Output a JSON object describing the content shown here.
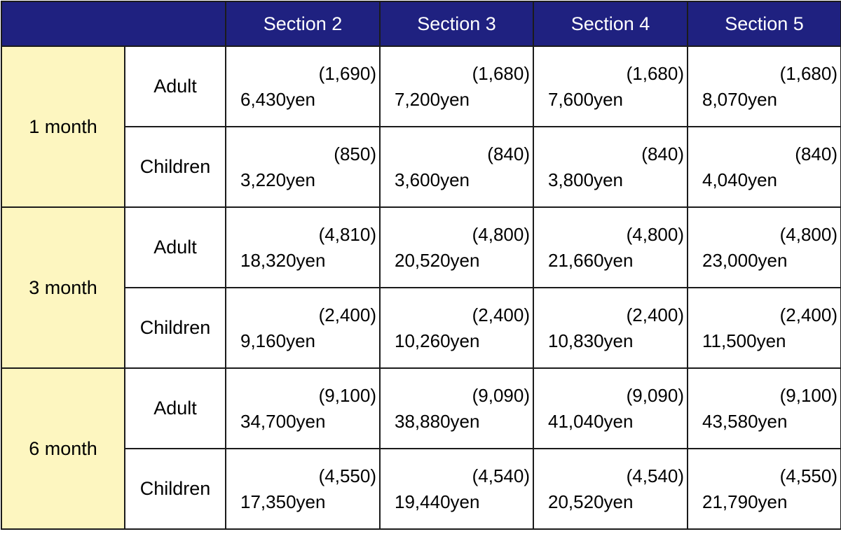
{
  "header": {
    "corner": "",
    "sections": [
      "Section 2",
      "Section 3",
      "Section 4",
      "Section 5"
    ]
  },
  "rows": [
    {
      "period": "1 month",
      "adult": {
        "label": "Adult",
        "cells": [
          {
            "child": "(1,690)",
            "price": "6,430yen"
          },
          {
            "child": "(1,680)",
            "price": "7,200yen"
          },
          {
            "child": "(1,680)",
            "price": "7,600yen"
          },
          {
            "child": "(1,680)",
            "price": "8,070yen"
          }
        ]
      },
      "children": {
        "label": "Children",
        "cells": [
          {
            "child": "(850)",
            "price": "3,220yen"
          },
          {
            "child": "(840)",
            "price": "3,600yen"
          },
          {
            "child": "(840)",
            "price": "3,800yen"
          },
          {
            "child": "(840)",
            "price": "4,040yen"
          }
        ]
      }
    },
    {
      "period": "3 month",
      "adult": {
        "label": "Adult",
        "cells": [
          {
            "child": "(4,810)",
            "price": "18,320yen"
          },
          {
            "child": "(4,800)",
            "price": "20,520yen"
          },
          {
            "child": "(4,800)",
            "price": "21,660yen"
          },
          {
            "child": "(4,800)",
            "price": "23,000yen"
          }
        ]
      },
      "children": {
        "label": "Children",
        "cells": [
          {
            "child": "(2,400)",
            "price": "9,160yen"
          },
          {
            "child": "(2,400)",
            "price": "10,260yen"
          },
          {
            "child": "(2,400)",
            "price": "10,830yen"
          },
          {
            "child": "(2,400)",
            "price": "11,500yen"
          }
        ]
      }
    },
    {
      "period": "6 month",
      "adult": {
        "label": "Adult",
        "cells": [
          {
            "child": "(9,100)",
            "price": "34,700yen"
          },
          {
            "child": "(9,090)",
            "price": "38,880yen"
          },
          {
            "child": "(9,090)",
            "price": "41,040yen"
          },
          {
            "child": "(9,100)",
            "price": "43,580yen"
          }
        ]
      },
      "children": {
        "label": "Children",
        "cells": [
          {
            "child": "(4,550)",
            "price": "17,350yen"
          },
          {
            "child": "(4,540)",
            "price": "19,440yen"
          },
          {
            "child": "(4,540)",
            "price": "20,520yen"
          },
          {
            "child": "(4,550)",
            "price": "21,790yen"
          }
        ]
      }
    }
  ],
  "colors": {
    "header_bg": "#1f2180",
    "header_text": "#ffffff",
    "period_bg": "#fdf6c0",
    "border": "#1b1b1b"
  }
}
